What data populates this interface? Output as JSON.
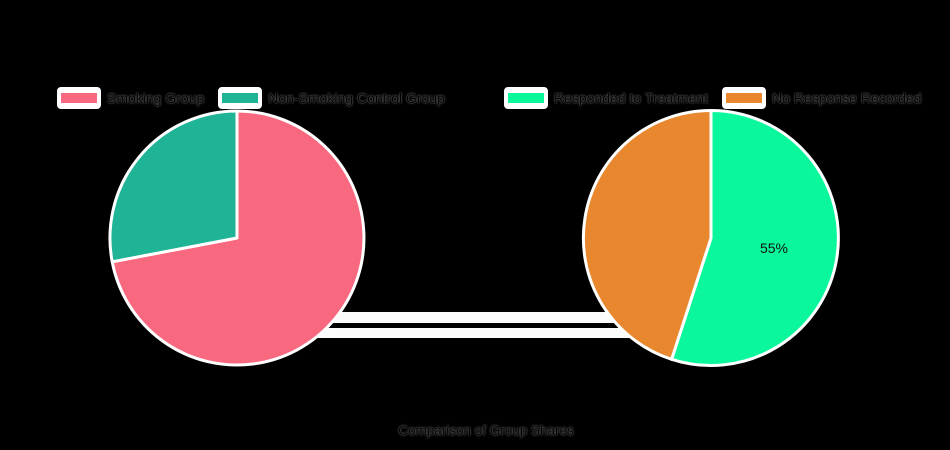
{
  "figure": {
    "background": "#000000",
    "caption": "Comparison of Group Shares",
    "text_color": "#000000",
    "outline_color": "#ffffff"
  },
  "legends": [
    {
      "side": "left",
      "items": [
        {
          "label": "Smoking Group",
          "color": "#F8687E"
        },
        {
          "label": "Non-Smoking Control Group",
          "color": "#1FB496"
        }
      ]
    },
    {
      "side": "right",
      "items": [
        {
          "label": "Responded to Treatment",
          "color": "#0BF79B"
        },
        {
          "label": "No Response Recorded",
          "color": "#E8872D"
        }
      ]
    }
  ],
  "chart_data": [
    {
      "type": "pie",
      "title": "",
      "labels": [
        "Smoking Group",
        "Non-Smoking Control Group"
      ],
      "values": [
        72,
        28
      ],
      "colors": [
        "#F8687E",
        "#1FB496"
      ],
      "start_angle": "top",
      "direction": "clockwise",
      "data_labels": [
        null,
        null
      ],
      "outline_color": "#ffffff",
      "legend_position": "top"
    },
    {
      "type": "pie",
      "title": "",
      "labels": [
        "Responded to Treatment",
        "No Response Recorded"
      ],
      "values": [
        55,
        45
      ],
      "colors": [
        "#0BF79B",
        "#E8872D"
      ],
      "start_angle": "top",
      "direction": "clockwise",
      "data_labels": [
        "55%",
        null
      ],
      "data_label_color": "#111111",
      "outline_color": "#ffffff",
      "legend_position": "top"
    }
  ],
  "decorations": {
    "connector_bands": 2
  }
}
